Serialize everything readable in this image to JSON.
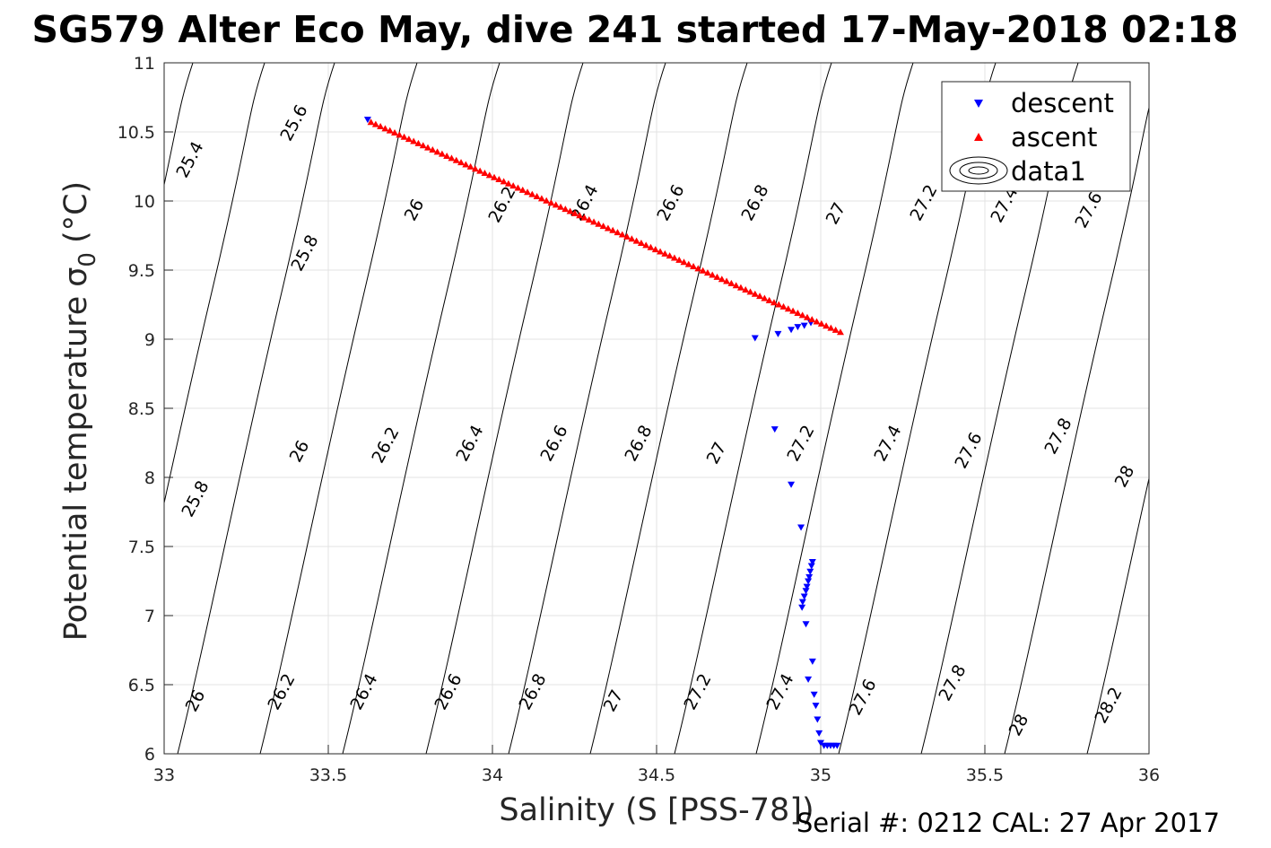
{
  "chart_data": {
    "type": "scatter",
    "title": "SG579 Alter Eco May, dive 241 started 17-May-2018 02:18",
    "xlabel": "Salinity (S [PSS-78])",
    "ylabel": "Potential temperature",
    "ylabel_symbol": "σ",
    "ylabel_subscript": "0",
    "ylabel_unit": "(°C)",
    "xlim": [
      33,
      36
    ],
    "ylim": [
      6,
      11
    ],
    "xticks": [
      "33",
      "33.5",
      "34",
      "34.5",
      "35",
      "35.5",
      "36"
    ],
    "yticks": [
      "6",
      "6.5",
      "7",
      "7.5",
      "8",
      "8.5",
      "9",
      "9.5",
      "10",
      "10.5",
      "11"
    ],
    "grid": true,
    "legend_position": "top-right",
    "legend": [
      "descent",
      "ascent",
      "data1"
    ],
    "series": [
      {
        "name": "descent",
        "marker": "triangle-down",
        "color": "#0000ff",
        "x": [
          33.62,
          34.8,
          34.87,
          34.91,
          34.93,
          34.95,
          34.97,
          34.86,
          34.91,
          34.94,
          34.975,
          34.972,
          34.968,
          34.965,
          34.962,
          34.958,
          34.955,
          34.95,
          34.945,
          34.943,
          34.955,
          34.962,
          34.975,
          34.98,
          34.985,
          34.99,
          34.995,
          35.0,
          35.01,
          35.02,
          35.03,
          35.04,
          35.05
        ],
        "y": [
          10.59,
          9.01,
          9.04,
          9.07,
          9.09,
          9.1,
          9.12,
          8.35,
          7.95,
          7.64,
          7.39,
          7.36,
          7.32,
          7.28,
          7.25,
          7.21,
          7.18,
          7.14,
          7.1,
          7.06,
          6.94,
          6.54,
          6.67,
          6.43,
          6.35,
          6.25,
          6.15,
          6.08,
          6.06,
          6.06,
          6.06,
          6.06,
          6.06
        ]
      },
      {
        "name": "ascent",
        "marker": "triangle-up",
        "color": "#ff0000",
        "x_start": 33.63,
        "y_start": 10.57,
        "x_end": 35.06,
        "y_end": 9.05,
        "count": 100
      }
    ],
    "isopycnal_contours": {
      "color": "#000000",
      "labeled_levels": [
        "25.4",
        "25.6",
        "25.8",
        "26",
        "26.2",
        "26.4",
        "26.6",
        "26.8",
        "27",
        "27.2",
        "27.4",
        "27.6",
        "27.8",
        "28",
        "28.2"
      ]
    }
  },
  "footer": {
    "serial": "Serial #: 0212  CAL: 27 Apr 2017"
  }
}
